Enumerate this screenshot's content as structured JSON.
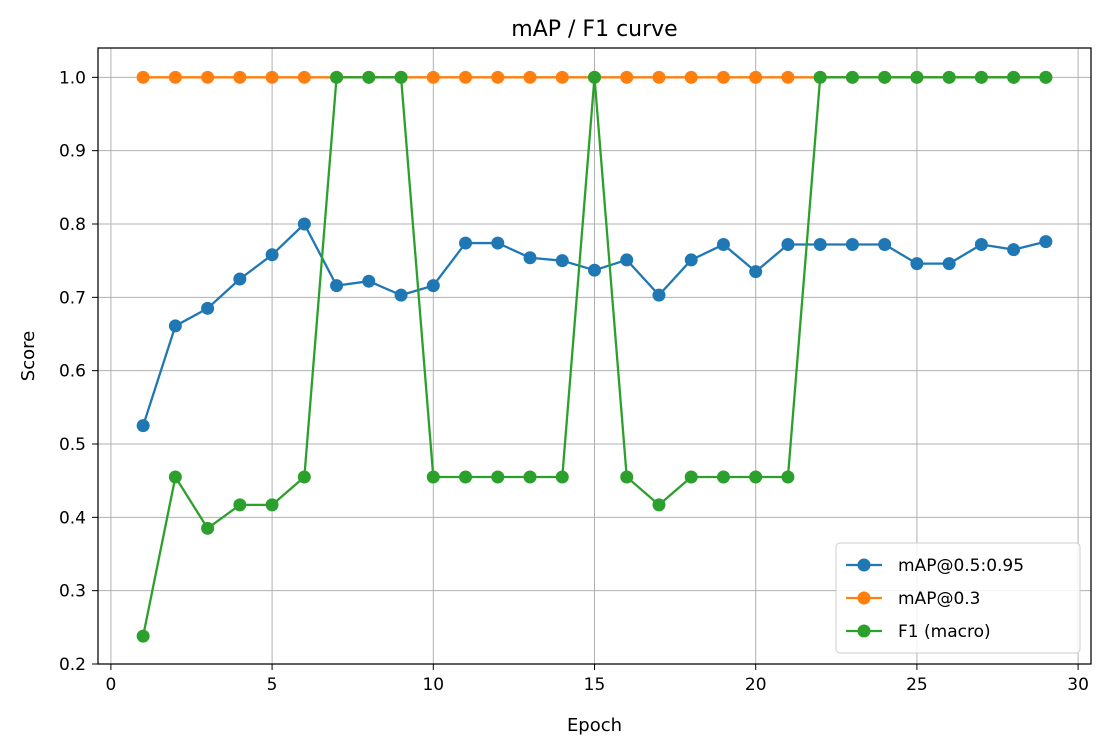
{
  "chart_data": {
    "type": "line",
    "title": "mAP / F1 curve",
    "xlabel": "Epoch",
    "ylabel": "Score",
    "xlim": [
      -0.4,
      30.4
    ],
    "ylim": [
      0.2,
      1.04
    ],
    "x_ticks": [
      0,
      5,
      10,
      15,
      20,
      25,
      30
    ],
    "x_tick_labels": [
      "0",
      "5",
      "10",
      "15",
      "20",
      "25",
      "30"
    ],
    "y_ticks": [
      0.2,
      0.3,
      0.4,
      0.5,
      0.6,
      0.7,
      0.8,
      0.9,
      1.0
    ],
    "y_tick_labels": [
      "0.2",
      "0.3",
      "0.4",
      "0.5",
      "0.6",
      "0.7",
      "0.8",
      "0.9",
      "1.0"
    ],
    "grid": true,
    "legend_position": "bottom-right",
    "x": [
      1,
      2,
      3,
      4,
      5,
      6,
      7,
      8,
      9,
      10,
      11,
      12,
      13,
      14,
      15,
      16,
      17,
      18,
      19,
      20,
      21,
      22,
      23,
      24,
      25,
      26,
      27,
      28,
      29
    ],
    "series": [
      {
        "name": "mAP@0.5:0.95",
        "color": "#1f77b4",
        "values": [
          0.525,
          0.661,
          0.685,
          0.725,
          0.758,
          0.8,
          0.716,
          0.722,
          0.703,
          0.716,
          0.774,
          0.774,
          0.754,
          0.75,
          0.737,
          0.751,
          0.703,
          0.751,
          0.772,
          0.735,
          0.772,
          0.772,
          0.772,
          0.772,
          0.746,
          0.746,
          0.772,
          0.765,
          0.776
        ]
      },
      {
        "name": "mAP@0.3",
        "color": "#ff7f0e",
        "values": [
          1.0,
          1.0,
          1.0,
          1.0,
          1.0,
          1.0,
          1.0,
          1.0,
          1.0,
          1.0,
          1.0,
          1.0,
          1.0,
          1.0,
          1.0,
          1.0,
          1.0,
          1.0,
          1.0,
          1.0,
          1.0,
          1.0,
          1.0,
          1.0,
          1.0,
          1.0,
          1.0,
          1.0,
          1.0
        ]
      },
      {
        "name": "F1 (macro)",
        "color": "#2ca02c",
        "values": [
          0.238,
          0.455,
          0.385,
          0.417,
          0.417,
          0.455,
          1.0,
          1.0,
          1.0,
          0.455,
          0.455,
          0.455,
          0.455,
          0.455,
          1.0,
          0.455,
          0.417,
          0.455,
          0.455,
          0.455,
          0.455,
          1.0,
          1.0,
          1.0,
          1.0,
          1.0,
          1.0,
          1.0,
          1.0
        ]
      }
    ]
  }
}
